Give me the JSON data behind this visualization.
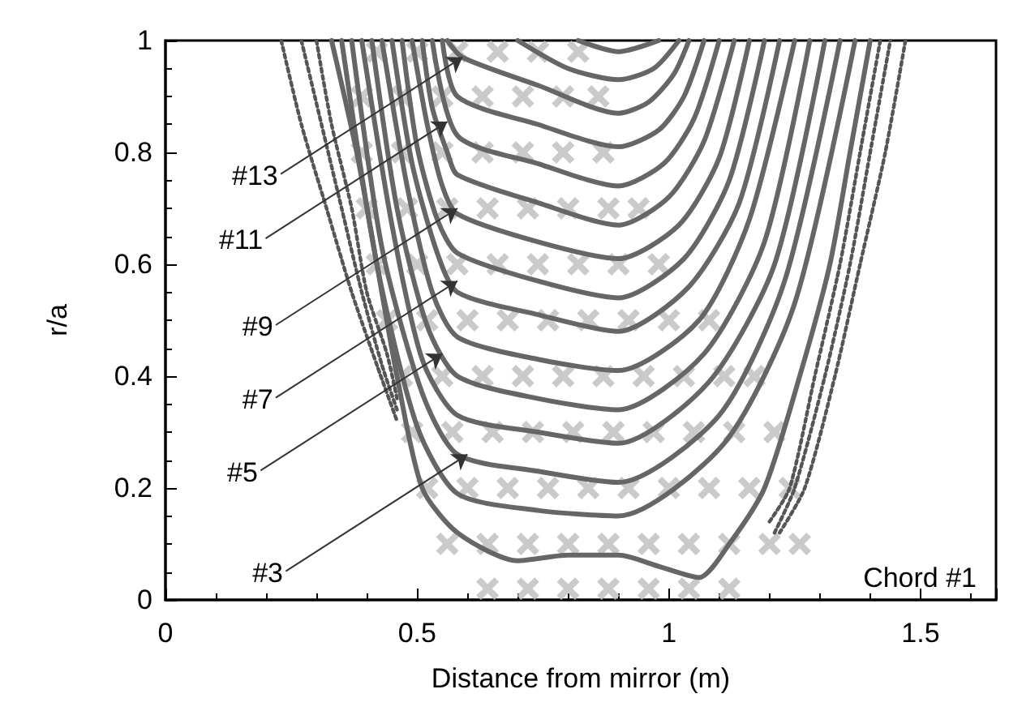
{
  "chart_data": {
    "type": "line",
    "xlabel": "Distance from mirror (m)",
    "ylabel": "r/a",
    "xlim": [
      0,
      1.65
    ],
    "xticks": [
      0,
      0.5,
      1,
      1.5
    ],
    "ylim": [
      0,
      1
    ],
    "yticks": [
      0,
      0.2,
      0.4,
      0.6,
      0.8,
      1
    ],
    "grid": false,
    "marker": "none",
    "line_style": "solid",
    "annotations": [
      {
        "text": "#13",
        "x": 0.59,
        "y": 0.97
      },
      {
        "text": "#11",
        "x": 0.56,
        "y": 0.855
      },
      {
        "text": "#9",
        "x": 0.58,
        "y": 0.7
      },
      {
        "text": "#7",
        "x": 0.58,
        "y": 0.57
      },
      {
        "text": "#5",
        "x": 0.55,
        "y": 0.44
      },
      {
        "text": "#3",
        "x": 0.6,
        "y": 0.26
      },
      "Chord #1"
    ],
    "series": [
      {
        "type": "scatter",
        "marker": "cross",
        "color": "#bdbdbd",
        "x": [
          0.64,
          0.72,
          0.8,
          0.88,
          0.96,
          1.04,
          1.12,
          0.56,
          0.64,
          0.72,
          0.8,
          0.88,
          0.96,
          1.04,
          1.12,
          1.2,
          1.26,
          0.52,
          0.6,
          0.68,
          0.76,
          0.84,
          0.92,
          1.0,
          1.08,
          1.16,
          1.24,
          0.49,
          0.57,
          0.65,
          0.73,
          0.81,
          0.89,
          0.97,
          1.05,
          1.13,
          1.21,
          0.47,
          0.55,
          0.63,
          0.71,
          0.79,
          0.87,
          0.95,
          1.03,
          1.11,
          1.17,
          0.44,
          0.52,
          0.6,
          0.68,
          0.76,
          0.84,
          0.92,
          1.0,
          1.08,
          0.42,
          0.5,
          0.58,
          0.66,
          0.74,
          0.82,
          0.9,
          0.98,
          0.4,
          0.48,
          0.56,
          0.64,
          0.72,
          0.8,
          0.88,
          0.94,
          0.39,
          0.47,
          0.55,
          0.63,
          0.71,
          0.79,
          0.87,
          0.39,
          0.47,
          0.55,
          0.63,
          0.71,
          0.79,
          0.86,
          0.42,
          0.5,
          0.58,
          0.66,
          0.74,
          0.82
        ],
        "values": [
          0.02,
          0.02,
          0.02,
          0.02,
          0.02,
          0.02,
          0.02,
          0.1,
          0.1,
          0.1,
          0.1,
          0.1,
          0.1,
          0.1,
          0.1,
          0.1,
          0.1,
          0.2,
          0.2,
          0.2,
          0.2,
          0.2,
          0.2,
          0.2,
          0.2,
          0.2,
          0.2,
          0.3,
          0.3,
          0.3,
          0.3,
          0.3,
          0.3,
          0.3,
          0.3,
          0.3,
          0.3,
          0.4,
          0.4,
          0.4,
          0.4,
          0.4,
          0.4,
          0.4,
          0.4,
          0.4,
          0.4,
          0.5,
          0.5,
          0.5,
          0.5,
          0.5,
          0.5,
          0.5,
          0.5,
          0.5,
          0.6,
          0.6,
          0.6,
          0.6,
          0.6,
          0.6,
          0.6,
          0.6,
          0.7,
          0.7,
          0.7,
          0.7,
          0.7,
          0.7,
          0.7,
          0.7,
          0.8,
          0.8,
          0.8,
          0.8,
          0.8,
          0.8,
          0.8,
          0.9,
          0.9,
          0.9,
          0.9,
          0.9,
          0.9,
          0.9,
          0.98,
          0.98,
          0.98,
          0.98,
          0.98,
          0.98
        ]
      },
      {
        "type": "line",
        "line_style": "dotted",
        "color": "#555555",
        "x": [
          0.23,
          0.27,
          0.32,
          0.37,
          0.42,
          0.46
        ],
        "values": [
          1,
          0.85,
          0.7,
          0.55,
          0.42,
          0.32
        ]
      },
      {
        "type": "line",
        "line_style": "dotted",
        "color": "#555555",
        "x": [
          0.27,
          0.31,
          0.35,
          0.39,
          0.43,
          0.46
        ],
        "values": [
          1,
          0.85,
          0.7,
          0.55,
          0.42,
          0.34
        ]
      },
      {
        "type": "line",
        "line_style": "dotted",
        "color": "#555555",
        "x": [
          0.3,
          0.33,
          0.37,
          0.4,
          0.44,
          0.46
        ],
        "values": [
          1,
          0.85,
          0.7,
          0.55,
          0.44,
          0.36
        ]
      },
      {
        "type": "line",
        "line_style": "dotted",
        "color": "#555555",
        "x": [
          1.22,
          1.27,
          1.33,
          1.38,
          1.43,
          1.47
        ],
        "values": [
          0.12,
          0.2,
          0.4,
          0.6,
          0.8,
          1
        ]
      },
      {
        "type": "line",
        "line_style": "dotted",
        "color": "#555555",
        "x": [
          1.21,
          1.25,
          1.31,
          1.36,
          1.4,
          1.44
        ],
        "values": [
          0.12,
          0.2,
          0.4,
          0.6,
          0.8,
          1
        ]
      },
      {
        "type": "line",
        "line_style": "dotted",
        "color": "#555555",
        "x": [
          1.2,
          1.24,
          1.29,
          1.34,
          1.38,
          1.42
        ],
        "values": [
          0.14,
          0.2,
          0.4,
          0.6,
          0.8,
          1
        ]
      },
      {
        "color": "#666666",
        "x": [
          0.33,
          0.38,
          0.42,
          0.46,
          0.51,
          0.58,
          0.7,
          0.8,
          0.9,
          0.98,
          1.06,
          1.12,
          1.19,
          1.26,
          1.32,
          1.36,
          1.4
        ],
        "values": [
          1,
          0.8,
          0.6,
          0.4,
          0.2,
          0.12,
          0.07,
          0.08,
          0.08,
          0.06,
          0.04,
          0.1,
          0.2,
          0.4,
          0.6,
          0.8,
          1
        ]
      },
      {
        "color": "#666666",
        "x": [
          0.35,
          0.42,
          0.5,
          0.58,
          0.74,
          0.9,
          1.11,
          1.25,
          1.37
        ],
        "values": [
          1,
          0.6,
          0.31,
          0.19,
          0.16,
          0.15,
          0.28,
          0.53,
          1
        ]
      },
      {
        "color": "#666666",
        "x": [
          0.37,
          0.43,
          0.51,
          0.58,
          0.74,
          0.9,
          1.1,
          1.23,
          1.34
        ],
        "values": [
          1,
          0.63,
          0.37,
          0.26,
          0.23,
          0.21,
          0.33,
          0.57,
          1
        ]
      },
      {
        "color": "#666666",
        "x": [
          0.39,
          0.45,
          0.51,
          0.58,
          0.74,
          0.9,
          1.08,
          1.21,
          1.31
        ],
        "values": [
          1,
          0.67,
          0.43,
          0.33,
          0.3,
          0.28,
          0.39,
          0.6,
          1
        ]
      },
      {
        "color": "#666666",
        "x": [
          0.41,
          0.46,
          0.52,
          0.58,
          0.74,
          0.9,
          1.07,
          1.19,
          1.28
        ],
        "values": [
          1,
          0.7,
          0.49,
          0.4,
          0.36,
          0.34,
          0.44,
          0.64,
          1
        ]
      },
      {
        "color": "#666666",
        "x": [
          0.43,
          0.48,
          0.53,
          0.58,
          0.74,
          0.9,
          1.06,
          1.16,
          1.25
        ],
        "values": [
          1,
          0.74,
          0.55,
          0.47,
          0.43,
          0.41,
          0.5,
          0.68,
          1
        ]
      },
      {
        "color": "#666666",
        "x": [
          0.45,
          0.49,
          0.54,
          0.58,
          0.74,
          0.9,
          1.04,
          1.14,
          1.22
        ],
        "values": [
          1,
          0.78,
          0.62,
          0.55,
          0.51,
          0.48,
          0.56,
          0.71,
          1
        ]
      },
      {
        "color": "#666666",
        "x": [
          0.47,
          0.5,
          0.54,
          0.58,
          0.74,
          0.9,
          1.03,
          1.12,
          1.19
        ],
        "values": [
          1,
          0.81,
          0.68,
          0.62,
          0.57,
          0.54,
          0.61,
          0.75,
          1
        ]
      },
      {
        "color": "#666666",
        "x": [
          0.49,
          0.52,
          0.55,
          0.58,
          0.74,
          0.9,
          1.02,
          1.1,
          1.16
        ],
        "values": [
          1,
          0.85,
          0.74,
          0.69,
          0.64,
          0.61,
          0.67,
          0.79,
          1
        ]
      },
      {
        "color": "#666666",
        "x": [
          0.51,
          0.53,
          0.56,
          0.58,
          0.74,
          0.9,
          1.0,
          1.07,
          1.13
        ],
        "values": [
          1,
          0.88,
          0.8,
          0.76,
          0.71,
          0.67,
          0.72,
          0.82,
          1
        ]
      },
      {
        "color": "#666666",
        "x": [
          0.53,
          0.58,
          0.74,
          0.9,
          0.99,
          1.05,
          1.1
        ],
        "values": [
          1,
          0.83,
          0.78,
          0.74,
          0.78,
          0.86,
          1
        ]
      },
      {
        "color": "#666666",
        "x": [
          0.55,
          0.58,
          0.74,
          0.9,
          0.98,
          1.03,
          1.07
        ],
        "values": [
          1,
          0.9,
          0.85,
          0.81,
          0.84,
          0.9,
          1
        ]
      },
      {
        "color": "#666666",
        "x": [
          0.56,
          0.59,
          0.74,
          0.9,
          0.96,
          1.01,
          1.04
        ],
        "values": [
          1,
          0.97,
          0.92,
          0.87,
          0.89,
          0.94,
          1
        ]
      },
      {
        "color": "#666666",
        "x": [
          0.7,
          0.8,
          0.9,
          0.97,
          1.02
        ],
        "values": [
          1,
          0.95,
          0.93,
          0.95,
          1
        ]
      },
      {
        "color": "#666666",
        "x": [
          0.82,
          0.9,
          0.98
        ],
        "values": [
          1,
          0.98,
          1
        ]
      }
    ]
  }
}
